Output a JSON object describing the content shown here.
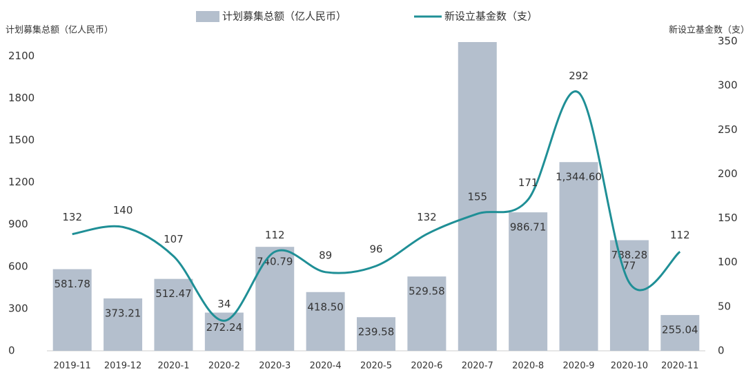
{
  "chart_data": {
    "type": "bar-line",
    "y_label": "计划募集总额（亿人民币）",
    "y2_label": "新设立基金数（支）",
    "categories": [
      "2019-11",
      "2019-12",
      "2020-1",
      "2020-2",
      "2020-3",
      "2020-4",
      "2020-5",
      "2020-6",
      "2020-7",
      "2020-8",
      "2020-9",
      "2020-10",
      "2020-11"
    ],
    "series": [
      {
        "name": "计划募集总额（亿人民币）",
        "type": "bar",
        "color": "#b4bfcd",
        "values": [
          581.78,
          373.21,
          512.47,
          272.24,
          740.79,
          418.5,
          239.58,
          529.58,
          2200,
          986.71,
          1344.6,
          788.28,
          255.04
        ],
        "value_labels": [
          "581.78",
          "373.21",
          "512.47",
          "272.24",
          "740.79",
          "418.50",
          "239.58",
          "529.58",
          null,
          "986.71",
          "1,344.60",
          "788.28",
          "255.04"
        ]
      },
      {
        "name": "新设立基金数（支）",
        "type": "line",
        "axis": "y2",
        "color": "#1f8f96",
        "values": [
          132,
          140,
          107,
          34,
          112,
          89,
          96,
          132,
          155,
          171,
          292,
          77,
          112
        ]
      }
    ],
    "ylim": [
      0,
      2205
    ],
    "yticks": [
      0,
      300,
      600,
      900,
      1200,
      1500,
      1800,
      2100
    ],
    "y2lim": [
      0,
      350
    ],
    "y2ticks": [
      0,
      50,
      100,
      150,
      200,
      250,
      300,
      350
    ]
  }
}
